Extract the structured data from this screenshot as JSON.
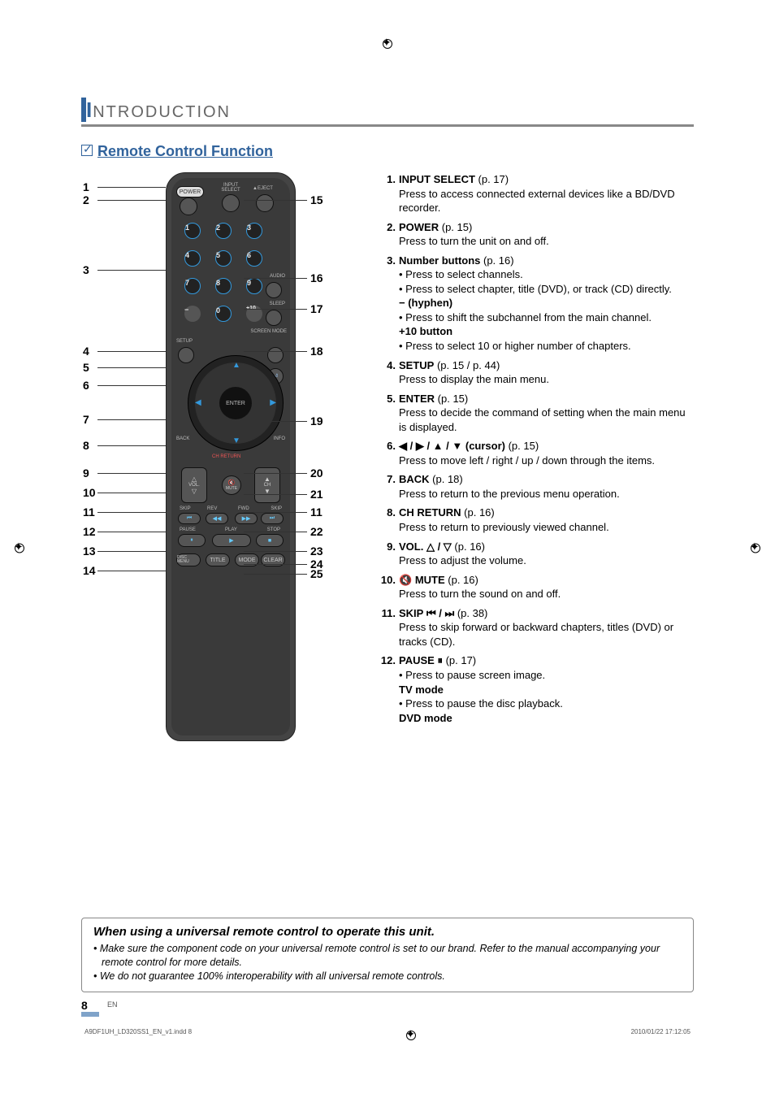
{
  "header": {
    "title_rest": "NTRODUCTION"
  },
  "section": {
    "title": "Remote Control Function"
  },
  "callouts_left": [
    "1",
    "2",
    "3",
    "4",
    "5",
    "6",
    "7",
    "8",
    "9",
    "10",
    "11",
    "12",
    "13",
    "14"
  ],
  "callouts_right": [
    "15",
    "16",
    "17",
    "18",
    "19",
    "20",
    "21",
    "11",
    "22",
    "23",
    "24",
    "25"
  ],
  "remote": {
    "top_labels": [
      "POWER",
      "INPUT\nSELECT",
      "▲EJECT"
    ],
    "numbers": [
      "1",
      "2",
      "3",
      "4",
      "5",
      "6",
      "7",
      "8",
      "9",
      "−",
      "0",
      "+10"
    ],
    "right_small": [
      "AUDIO",
      "SLEEP",
      "SCREEN\nMODE"
    ],
    "setup": "SETUP",
    "return": "⏎",
    "enter": "ENTER",
    "back": "BACK",
    "info": "INFO",
    "ch_return": "CH RETURN",
    "vol": "VOL.",
    "mute": "MUTE",
    "ch": "CH",
    "transport": {
      "skip": "SKIP",
      "rev": "REV",
      "fwd": "FWD",
      "skip2": "SKIP",
      "pause": "PAUSE",
      "play": "PLAY",
      "stop": "STOP"
    },
    "bottom": [
      "DISC\nMENU",
      "TITLE",
      "MODE",
      "CLEAR"
    ]
  },
  "functions": [
    {
      "n": "1.",
      "title": "INPUT SELECT",
      "page": " (p. 17)",
      "body": [
        "Press to access connected external devices like a BD/DVD recorder."
      ]
    },
    {
      "n": "2.",
      "title": "POWER",
      "page": " (p. 15)",
      "body": [
        "Press to turn the unit on and off."
      ]
    },
    {
      "n": "3.",
      "title": "Number buttons",
      "page": " (p. 16)",
      "bullets": [
        "Press to select channels.",
        "Press to select chapter, title (DVD), or track (CD) directly."
      ],
      "sub1": "− (hyphen)",
      "bullets2": [
        "Press to shift the subchannel from the main channel."
      ],
      "sub2": "+10 button",
      "bullets3": [
        "Press to select 10 or higher number of chapters."
      ]
    },
    {
      "n": "4.",
      "title": "SETUP",
      "page": " (p. 15 / p. 44)",
      "body": [
        "Press to display the main menu."
      ]
    },
    {
      "n": "5.",
      "title": "ENTER",
      "page": " (p. 15)",
      "body": [
        "Press to decide the command of setting when the main menu is displayed."
      ]
    },
    {
      "n": "6.",
      "title_sym": "◀ / ▶ / ▲ / ▼",
      "title_after": " (cursor)",
      "page": " (p. 15)",
      "body": [
        "Press to move left / right / up / down through the items."
      ]
    },
    {
      "n": "7.",
      "title": "BACK",
      "page": " (p. 18)",
      "body": [
        "Press to return to the previous menu operation."
      ]
    },
    {
      "n": "8.",
      "title": "CH RETURN",
      "page": " (p. 16)",
      "body": [
        "Press to return to previously viewed channel."
      ]
    },
    {
      "n": "9.",
      "title": "VOL.",
      "title_sym_after": " △ / ▽",
      "page": " (p. 16)",
      "body": [
        "Press to adjust the volume."
      ]
    },
    {
      "n": "10.",
      "title_sym": "🔇 ",
      "title": "MUTE",
      "page": " (p. 16)",
      "body": [
        "Press to turn the sound on and off."
      ]
    },
    {
      "n": "11.",
      "title": "SKIP",
      "title_sym_after": " ⏮ / ⏭",
      "page": " (p. 38)",
      "body": [
        "Press to skip forward or backward chapters, titles (DVD) or tracks (CD)."
      ]
    },
    {
      "n": "12.",
      "title": "PAUSE",
      "title_sym_after": " ⏸",
      "page": " (p. 17)",
      "sub1": "TV mode",
      "bullets": [
        "Press to pause screen image."
      ],
      "sub2": "DVD mode",
      "bullets2": [
        "Press to pause the disc playback."
      ]
    }
  ],
  "note": {
    "title": "When using a universal remote control to operate this unit.",
    "lines": [
      "Make sure the component code on your universal remote control is set to our brand. Refer to the manual accompanying your remote control for more details.",
      "We do not guarantee 100% interoperability with all universal remote controls."
    ]
  },
  "footer": {
    "page_num": "8",
    "lang": "EN",
    "file": "A9DF1UH_LD320SS1_EN_v1.indd   8",
    "stamp": "2010/01/22   17:12:05"
  },
  "colors": {
    "accent": "#31639c",
    "rule": "#888",
    "body": "#000000"
  }
}
